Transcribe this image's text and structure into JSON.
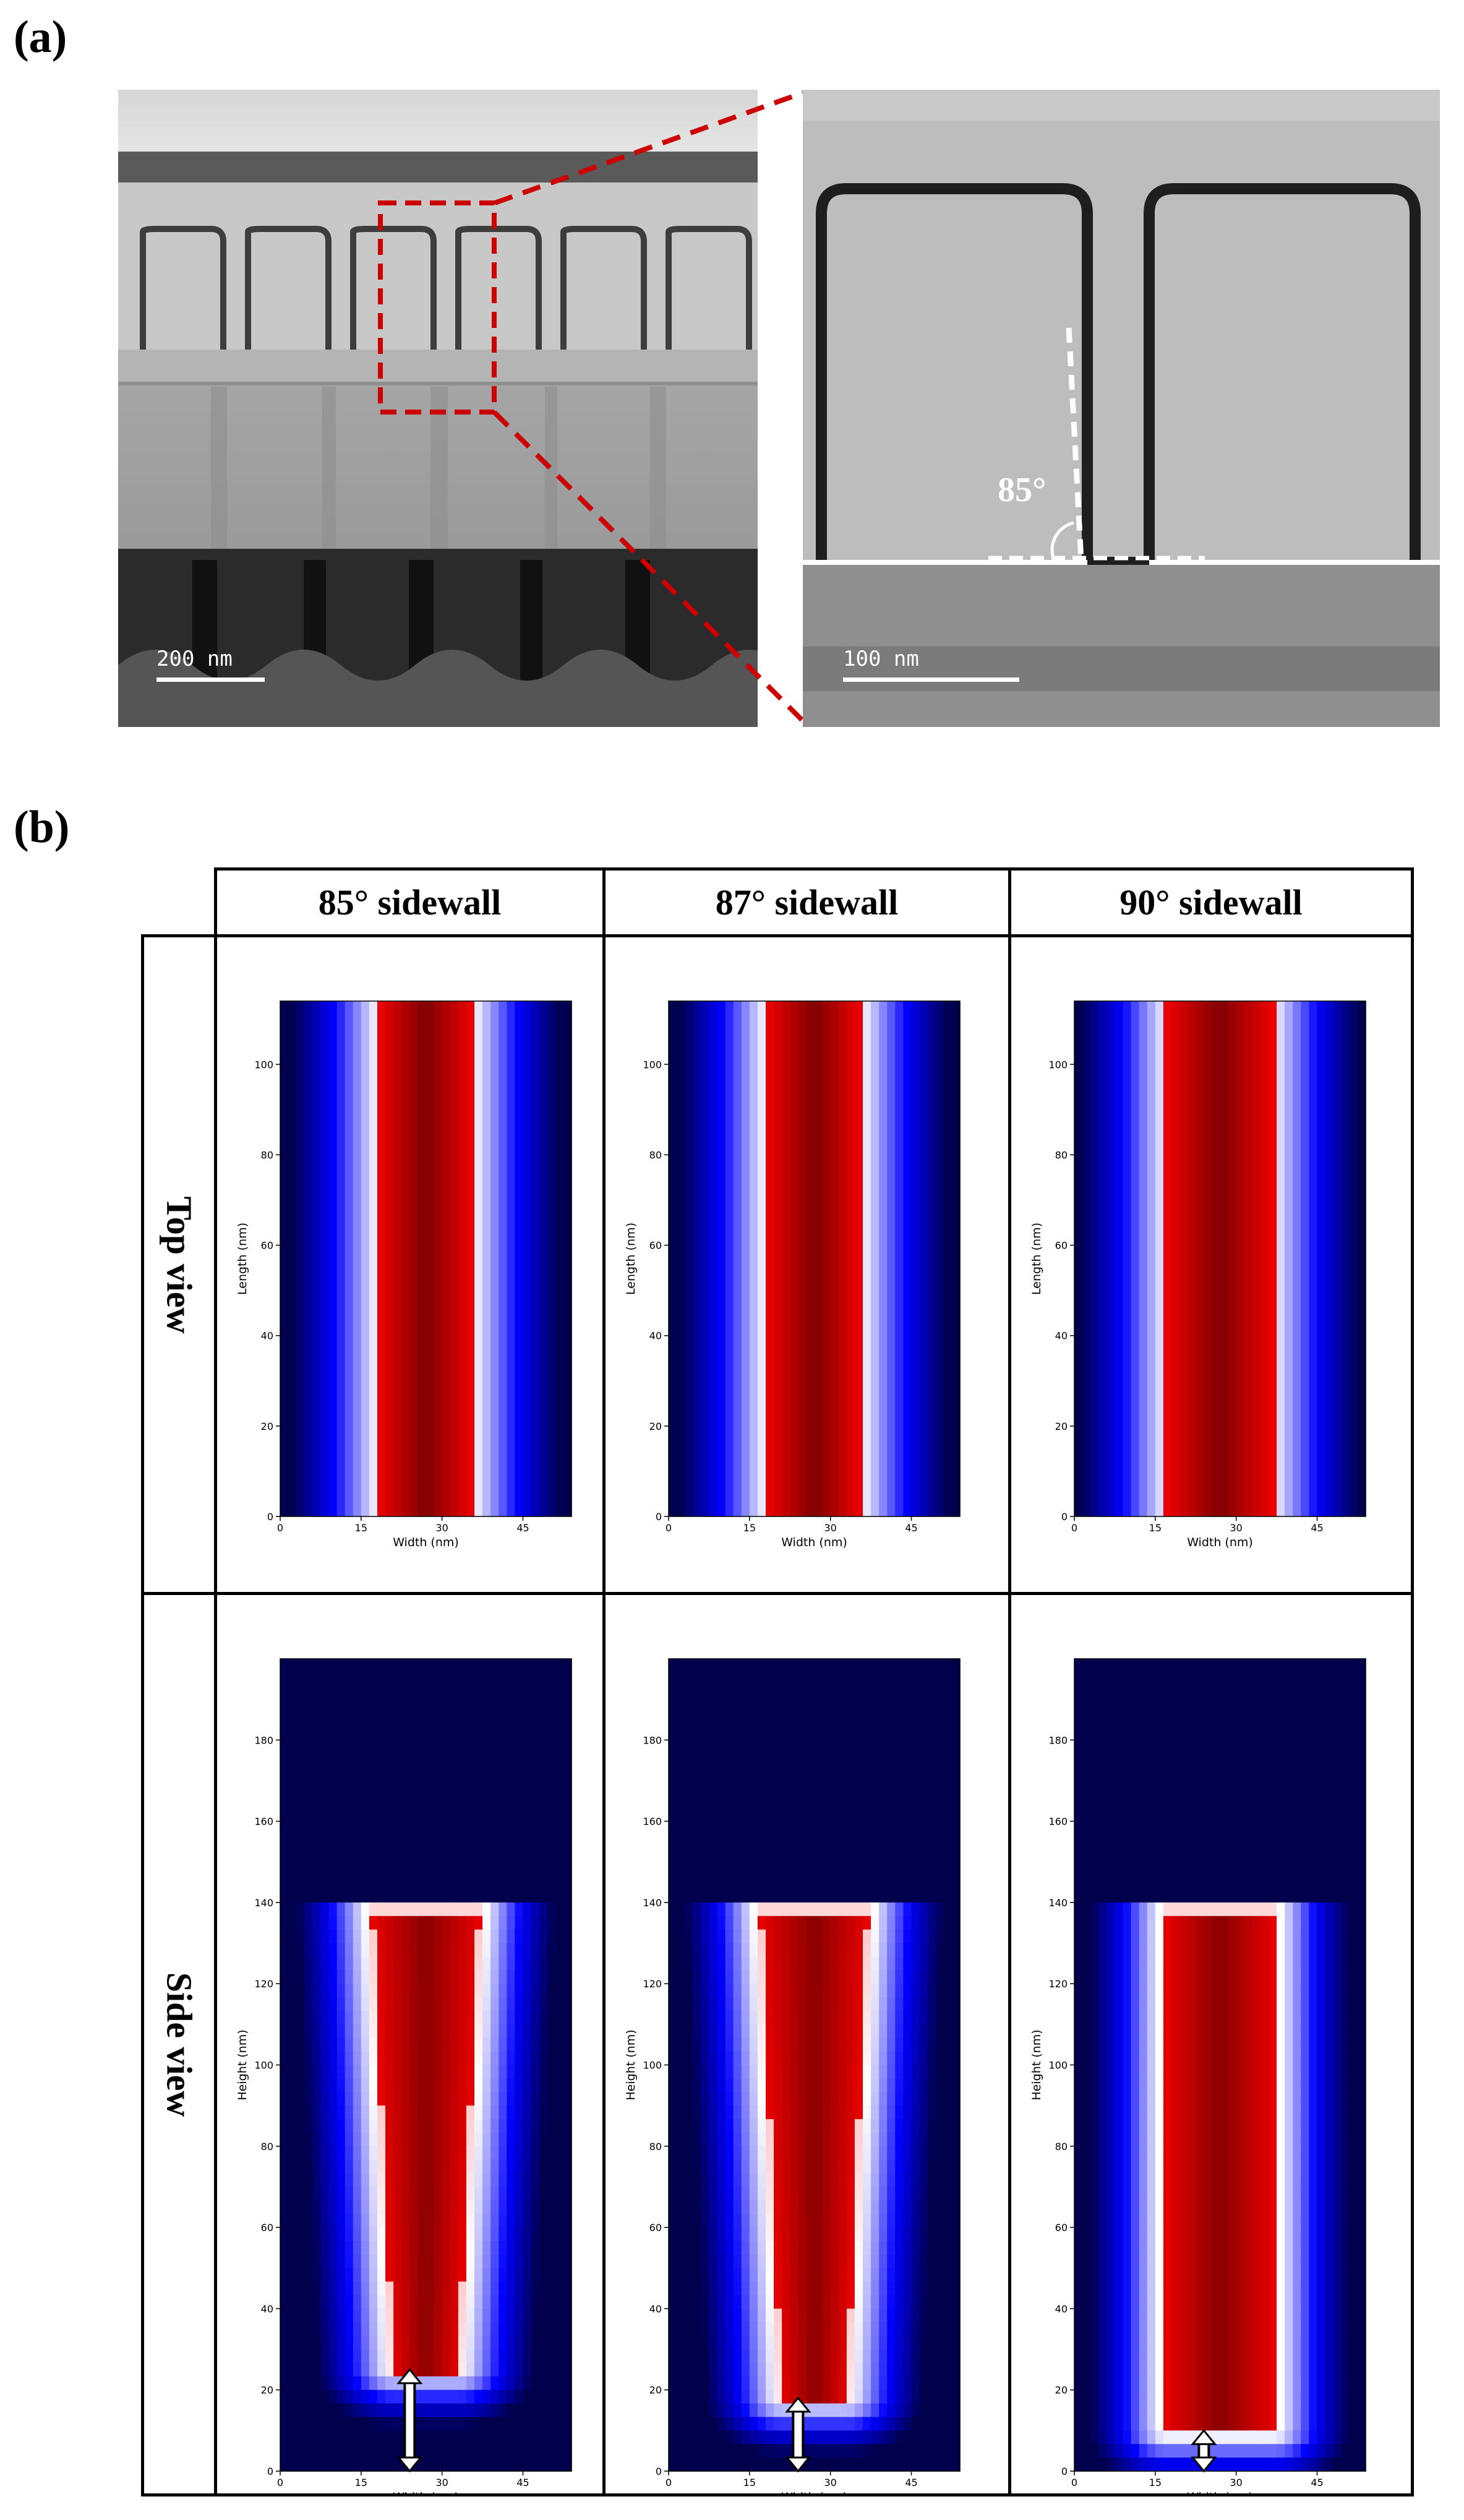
{
  "panel_a": {
    "label": "(a)",
    "left_image": {
      "scalebar": "200 nm"
    },
    "right_image": {
      "scalebar": "100 nm",
      "angle_label": "85°"
    }
  },
  "panel_b": {
    "label": "(b)",
    "columns": [
      "85° sidewall",
      "87° sidewall",
      "90° sidewall"
    ],
    "rows": [
      "Top view",
      "Side view"
    ],
    "colors": {
      "colormap_low": "#00004d",
      "colormap_mid": "#ffffff",
      "colormap_high": "#800000",
      "annotation": "#cc0000"
    }
  },
  "chart_data": [
    {
      "type": "heatmap",
      "view": "top",
      "sidewall": "85°",
      "xlabel": "Width (nm)",
      "ylabel": "Length (nm)",
      "xticks": [
        0,
        15,
        30,
        45
      ],
      "yticks": [
        0,
        20,
        40,
        60,
        80,
        100
      ],
      "xlim": [
        0,
        54
      ],
      "ylim": [
        0,
        114
      ],
      "core_width_range_nm": [
        19,
        37
      ]
    },
    {
      "type": "heatmap",
      "view": "top",
      "sidewall": "87°",
      "xlabel": "Width (nm)",
      "ylabel": "Length (nm)",
      "xticks": [
        0,
        15,
        30,
        45
      ],
      "yticks": [
        0,
        20,
        40,
        60,
        80,
        100
      ],
      "xlim": [
        0,
        54
      ],
      "ylim": [
        0,
        114
      ],
      "core_width_range_nm": [
        19,
        37
      ]
    },
    {
      "type": "heatmap",
      "view": "top",
      "sidewall": "90°",
      "xlabel": "Width (nm)",
      "ylabel": "Length (nm)",
      "xticks": [
        0,
        15,
        30,
        45
      ],
      "yticks": [
        0,
        20,
        40,
        60,
        80,
        100
      ],
      "xlim": [
        0,
        54
      ],
      "ylim": [
        0,
        114
      ],
      "core_width_range_nm": [
        18,
        38
      ]
    },
    {
      "type": "heatmap",
      "view": "side",
      "sidewall": "85°",
      "xlabel": "Width (nm)",
      "ylabel": "Height (nm)",
      "xticks": [
        0,
        15,
        30,
        45
      ],
      "yticks": [
        0,
        20,
        40,
        60,
        80,
        100,
        120,
        140,
        160,
        180
      ],
      "xlim": [
        0,
        54
      ],
      "ylim": [
        0,
        200
      ],
      "material_top_nm": 140,
      "gap_bottom_nm": 25
    },
    {
      "type": "heatmap",
      "view": "side",
      "sidewall": "87°",
      "xlabel": "Width (nm)",
      "ylabel": "Height (nm)",
      "xticks": [
        0,
        15,
        30,
        45
      ],
      "yticks": [
        0,
        20,
        40,
        60,
        80,
        100,
        120,
        140,
        160,
        180
      ],
      "xlim": [
        0,
        54
      ],
      "ylim": [
        0,
        200
      ],
      "material_top_nm": 140,
      "gap_bottom_nm": 18
    },
    {
      "type": "heatmap",
      "view": "side",
      "sidewall": "90°",
      "xlabel": "Width (nm)",
      "ylabel": "Height (nm)",
      "xticks": [
        0,
        15,
        30,
        45
      ],
      "yticks": [
        0,
        20,
        40,
        60,
        80,
        100,
        120,
        140,
        160,
        180
      ],
      "xlim": [
        0,
        54
      ],
      "ylim": [
        0,
        200
      ],
      "material_top_nm": 140,
      "gap_bottom_nm": 10
    }
  ]
}
